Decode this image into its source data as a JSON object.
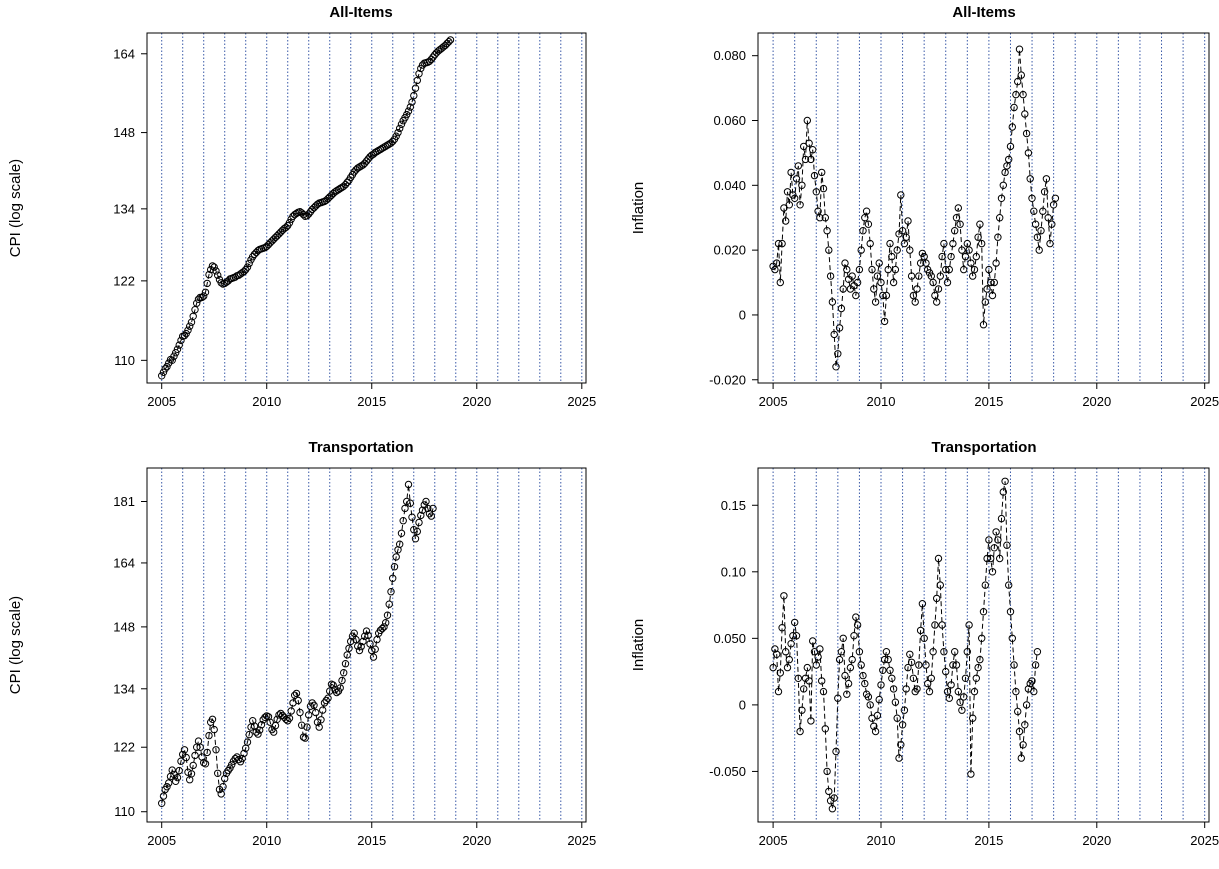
{
  "chart_data": [
    {
      "type": "line",
      "title": "All-Items",
      "xlabel": "",
      "ylabel": "CPI (log scale)",
      "log_y": true,
      "xlim": [
        2004.3,
        2025.2
      ],
      "ylim": [
        106.8,
        168.5
      ],
      "xticks": [
        2005,
        2010,
        2015,
        2020,
        2025
      ],
      "yticks": [
        110,
        122,
        134,
        148,
        164
      ],
      "vlines": [
        2005,
        2006,
        2007,
        2008,
        2009,
        2010,
        2011,
        2012,
        2013,
        2014,
        2015,
        2016,
        2017,
        2018,
        2019,
        2020,
        2021,
        2022,
        2023,
        2024,
        2025
      ],
      "line_style": "dashed",
      "start": 2005.0,
      "step": 0.08333,
      "values": [
        107.8,
        108.3,
        108.8,
        109.1,
        109.6,
        110.1,
        110.0,
        110.6,
        111.1,
        111.6,
        112.2,
        112.9,
        113.5,
        113.6,
        113.9,
        114.4,
        115.0,
        115.6,
        116.5,
        117.5,
        118.5,
        119.1,
        119.4,
        119.4,
        119.6,
        120.2,
        121.6,
        123.0,
        123.8,
        124.4,
        124.2,
        123.6,
        122.9,
        122.2,
        121.7,
        121.5,
        121.6,
        121.8,
        122.0,
        122.3,
        122.4,
        122.5,
        122.6,
        122.8,
        122.9,
        123.1,
        123.3,
        123.5,
        123.8,
        124.2,
        124.8,
        125.4,
        125.9,
        126.3,
        126.6,
        126.9,
        127.1,
        127.2,
        127.3,
        127.4,
        127.6,
        127.9,
        128.2,
        128.5,
        128.8,
        129.1,
        129.4,
        129.7,
        130.0,
        130.3,
        130.6,
        130.8,
        131.1,
        131.6,
        132.2,
        132.7,
        133.0,
        133.2,
        133.4,
        133.5,
        133.3,
        133.0,
        132.7,
        132.8,
        133.1,
        133.5,
        133.9,
        134.2,
        134.5,
        134.8,
        135.0,
        135.1,
        135.2,
        135.3,
        135.5,
        135.8,
        136.1,
        136.4,
        136.7,
        137.0,
        137.2,
        137.4,
        137.6,
        137.8,
        138.0,
        138.3,
        138.7,
        139.1,
        139.6,
        140.1,
        140.6,
        141.0,
        141.3,
        141.5,
        141.7,
        141.9,
        142.2,
        142.6,
        143.0,
        143.4,
        143.7,
        143.9,
        144.2,
        144.4,
        144.6,
        144.8,
        145.0,
        145.2,
        145.4,
        145.6,
        145.8,
        146.0,
        146.3,
        146.7,
        147.3,
        148.0,
        148.8,
        149.6,
        150.3,
        150.9,
        151.5,
        152.2,
        153.0,
        154.0,
        155.3,
        156.8,
        158.4,
        159.8,
        160.9,
        161.6,
        162.0,
        162.1,
        162.2,
        162.4,
        162.8,
        163.3,
        163.8,
        164.2,
        164.6,
        164.9,
        165.2,
        165.5,
        165.8,
        166.2,
        166.6,
        167.0
      ]
    },
    {
      "type": "line",
      "title": "All-Items",
      "xlabel": "",
      "ylabel": "Inflation",
      "xlim": [
        2004.3,
        2025.2
      ],
      "ylim": [
        -0.021,
        0.087
      ],
      "xticks": [
        2005,
        2010,
        2015,
        2020,
        2025
      ],
      "yticks": [
        -0.02,
        0,
        0.02,
        0.04,
        0.06,
        0.08
      ],
      "ytick_labels": [
        "-0.020",
        "0",
        "0.020",
        "0.040",
        "0.060",
        "0.080"
      ],
      "vlines": [
        2005,
        2006,
        2007,
        2008,
        2009,
        2010,
        2011,
        2012,
        2013,
        2014,
        2015,
        2016,
        2017,
        2018,
        2019,
        2020,
        2021,
        2022,
        2023,
        2024,
        2025
      ],
      "line_style": "dashed",
      "start": 2005.0,
      "step": 0.08333,
      "values": [
        0.015,
        0.014,
        0.016,
        0.022,
        0.01,
        0.022,
        0.033,
        0.029,
        0.038,
        0.034,
        0.044,
        0.037,
        0.036,
        0.042,
        0.046,
        0.034,
        0.04,
        0.052,
        0.048,
        0.06,
        0.053,
        0.048,
        0.051,
        0.043,
        0.038,
        0.032,
        0.03,
        0.044,
        0.039,
        0.03,
        0.026,
        0.02,
        0.012,
        0.004,
        -0.006,
        -0.016,
        -0.012,
        -0.004,
        0.002,
        0.008,
        0.016,
        0.014,
        0.011,
        0.008,
        0.012,
        0.009,
        0.006,
        0.01,
        0.014,
        0.02,
        0.026,
        0.03,
        0.032,
        0.028,
        0.022,
        0.014,
        0.008,
        0.004,
        0.012,
        0.016,
        0.01,
        0.006,
        -0.002,
        0.006,
        0.014,
        0.022,
        0.018,
        0.01,
        0.014,
        0.02,
        0.025,
        0.037,
        0.026,
        0.022,
        0.024,
        0.029,
        0.02,
        0.012,
        0.006,
        0.004,
        0.008,
        0.012,
        0.016,
        0.019,
        0.018,
        0.016,
        0.014,
        0.013,
        0.012,
        0.01,
        0.006,
        0.004,
        0.008,
        0.012,
        0.018,
        0.022,
        0.014,
        0.01,
        0.014,
        0.018,
        0.022,
        0.026,
        0.03,
        0.033,
        0.028,
        0.02,
        0.014,
        0.018,
        0.022,
        0.02,
        0.016,
        0.012,
        0.014,
        0.018,
        0.024,
        0.028,
        0.022,
        -0.003,
        0.004,
        0.008,
        0.014,
        0.01,
        0.006,
        0.01,
        0.016,
        0.024,
        0.03,
        0.036,
        0.04,
        0.044,
        0.046,
        0.048,
        0.052,
        0.058,
        0.064,
        0.068,
        0.072,
        0.082,
        0.074,
        0.068,
        0.062,
        0.056,
        0.05,
        0.042,
        0.036,
        0.032,
        0.028,
        0.024,
        0.02,
        0.026,
        0.032,
        0.038,
        0.042,
        0.03,
        0.022,
        0.028,
        0.034,
        0.036
      ]
    },
    {
      "type": "line",
      "title": "Transportation",
      "xlabel": "",
      "ylabel": "CPI (log scale)",
      "log_y": true,
      "xlim": [
        2004.3,
        2025.2
      ],
      "ylim": [
        108.2,
        191.0
      ],
      "xticks": [
        2005,
        2010,
        2015,
        2020,
        2025
      ],
      "yticks": [
        110,
        122,
        134,
        148,
        164,
        181
      ],
      "vlines": [
        2005,
        2006,
        2007,
        2008,
        2009,
        2010,
        2011,
        2012,
        2013,
        2014,
        2015,
        2016,
        2017,
        2018,
        2019,
        2020,
        2021,
        2022,
        2023,
        2024,
        2025
      ],
      "line_style": "dashed",
      "start": 2005.0,
      "step": 0.08333,
      "values": [
        111.5,
        112.8,
        114.0,
        114.5,
        115.2,
        116.4,
        117.6,
        116.8,
        115.5,
        116.2,
        117.5,
        119.3,
        120.6,
        121.5,
        120.0,
        117.2,
        115.8,
        116.9,
        118.5,
        120.4,
        122.0,
        123.2,
        122.0,
        120.1,
        119.0,
        118.8,
        121.0,
        124.3,
        127.0,
        127.6,
        125.5,
        121.5,
        117.0,
        114.0,
        113.2,
        114.5,
        116.0,
        117.0,
        117.5,
        118.0,
        118.6,
        119.3,
        119.8,
        120.1,
        119.6,
        119.2,
        119.8,
        120.8,
        121.8,
        123.0,
        124.5,
        126.0,
        127.3,
        126.2,
        125.0,
        124.6,
        125.4,
        126.5,
        127.5,
        128.0,
        128.3,
        128.1,
        127.0,
        125.5,
        125.0,
        126.3,
        127.6,
        128.5,
        128.8,
        128.4,
        128.0,
        127.6,
        127.3,
        127.8,
        129.3,
        131.0,
        132.6,
        133.0,
        131.5,
        129.0,
        126.4,
        124.0,
        123.8,
        126.0,
        128.5,
        130.3,
        131.0,
        130.5,
        129.0,
        127.0,
        126.0,
        127.5,
        129.5,
        131.0,
        131.5,
        132.0,
        133.5,
        135.0,
        134.8,
        133.8,
        133.2,
        133.5,
        134.2,
        135.8,
        137.5,
        139.5,
        141.5,
        143.0,
        144.6,
        145.8,
        146.5,
        145.0,
        143.5,
        142.5,
        143.4,
        144.6,
        145.8,
        147.0,
        146.0,
        144.0,
        142.5,
        141.0,
        142.8,
        145.0,
        146.5,
        147.2,
        147.6,
        148.0,
        149.0,
        150.8,
        153.5,
        156.6,
        160.0,
        163.0,
        165.6,
        167.5,
        169.0,
        172.0,
        175.5,
        179.0,
        181.0,
        186.0,
        180.5,
        176.5,
        173.0,
        170.5,
        172.5,
        175.0,
        177.0,
        178.5,
        180.0,
        181.0,
        179.0,
        177.5,
        176.8,
        179.0
      ]
    },
    {
      "type": "line",
      "title": "Transportation",
      "xlabel": "",
      "ylabel": "Inflation",
      "xlim": [
        2004.3,
        2025.2
      ],
      "ylim": [
        -0.088,
        0.178
      ],
      "xticks": [
        2005,
        2010,
        2015,
        2020,
        2025
      ],
      "yticks": [
        -0.05,
        0,
        0.05,
        0.1,
        0.15
      ],
      "ytick_labels": [
        "-0.050",
        "0",
        "0.050",
        "0.10",
        "0.15"
      ],
      "vlines": [
        2005,
        2006,
        2007,
        2008,
        2009,
        2010,
        2011,
        2012,
        2013,
        2014,
        2015,
        2016,
        2017,
        2018,
        2019,
        2020,
        2021,
        2022,
        2023,
        2024,
        2025
      ],
      "line_style": "dashed",
      "start": 2005.0,
      "step": 0.08333,
      "values": [
        0.028,
        0.042,
        0.038,
        0.01,
        0.024,
        0.058,
        0.082,
        0.04,
        0.028,
        0.034,
        0.046,
        0.052,
        0.062,
        0.052,
        0.02,
        -0.02,
        -0.004,
        0.012,
        0.02,
        0.028,
        0.018,
        -0.012,
        0.048,
        0.04,
        0.03,
        0.036,
        0.042,
        0.018,
        0.01,
        -0.018,
        -0.05,
        -0.065,
        -0.072,
        -0.078,
        -0.07,
        -0.035,
        0.005,
        0.034,
        0.04,
        0.05,
        0.022,
        0.008,
        0.016,
        0.028,
        0.034,
        0.052,
        0.066,
        0.06,
        0.04,
        0.03,
        0.022,
        0.016,
        0.008,
        0.006,
        0.0,
        -0.01,
        -0.016,
        -0.02,
        -0.008,
        0.004,
        0.015,
        0.026,
        0.034,
        0.04,
        0.034,
        0.026,
        0.02,
        0.012,
        0.002,
        -0.01,
        -0.04,
        -0.03,
        -0.015,
        -0.004,
        0.012,
        0.028,
        0.038,
        0.032,
        0.02,
        0.01,
        0.012,
        0.03,
        0.056,
        0.076,
        0.05,
        0.03,
        0.016,
        0.01,
        0.02,
        0.04,
        0.06,
        0.08,
        0.11,
        0.09,
        0.06,
        0.04,
        0.025,
        0.01,
        0.005,
        0.015,
        0.03,
        0.04,
        0.03,
        0.01,
        0.002,
        -0.004,
        0.006,
        0.02,
        0.04,
        0.06,
        -0.052,
        -0.01,
        0.01,
        0.02,
        0.028,
        0.034,
        0.05,
        0.07,
        0.09,
        0.11,
        0.124,
        0.11,
        0.1,
        0.118,
        0.13,
        0.124,
        0.11,
        0.14,
        0.16,
        0.168,
        0.12,
        0.09,
        0.07,
        0.05,
        0.03,
        0.01,
        -0.005,
        -0.02,
        -0.04,
        -0.03,
        -0.015,
        0.0,
        0.012,
        0.016,
        0.018,
        0.01,
        0.03,
        0.04
      ]
    }
  ]
}
